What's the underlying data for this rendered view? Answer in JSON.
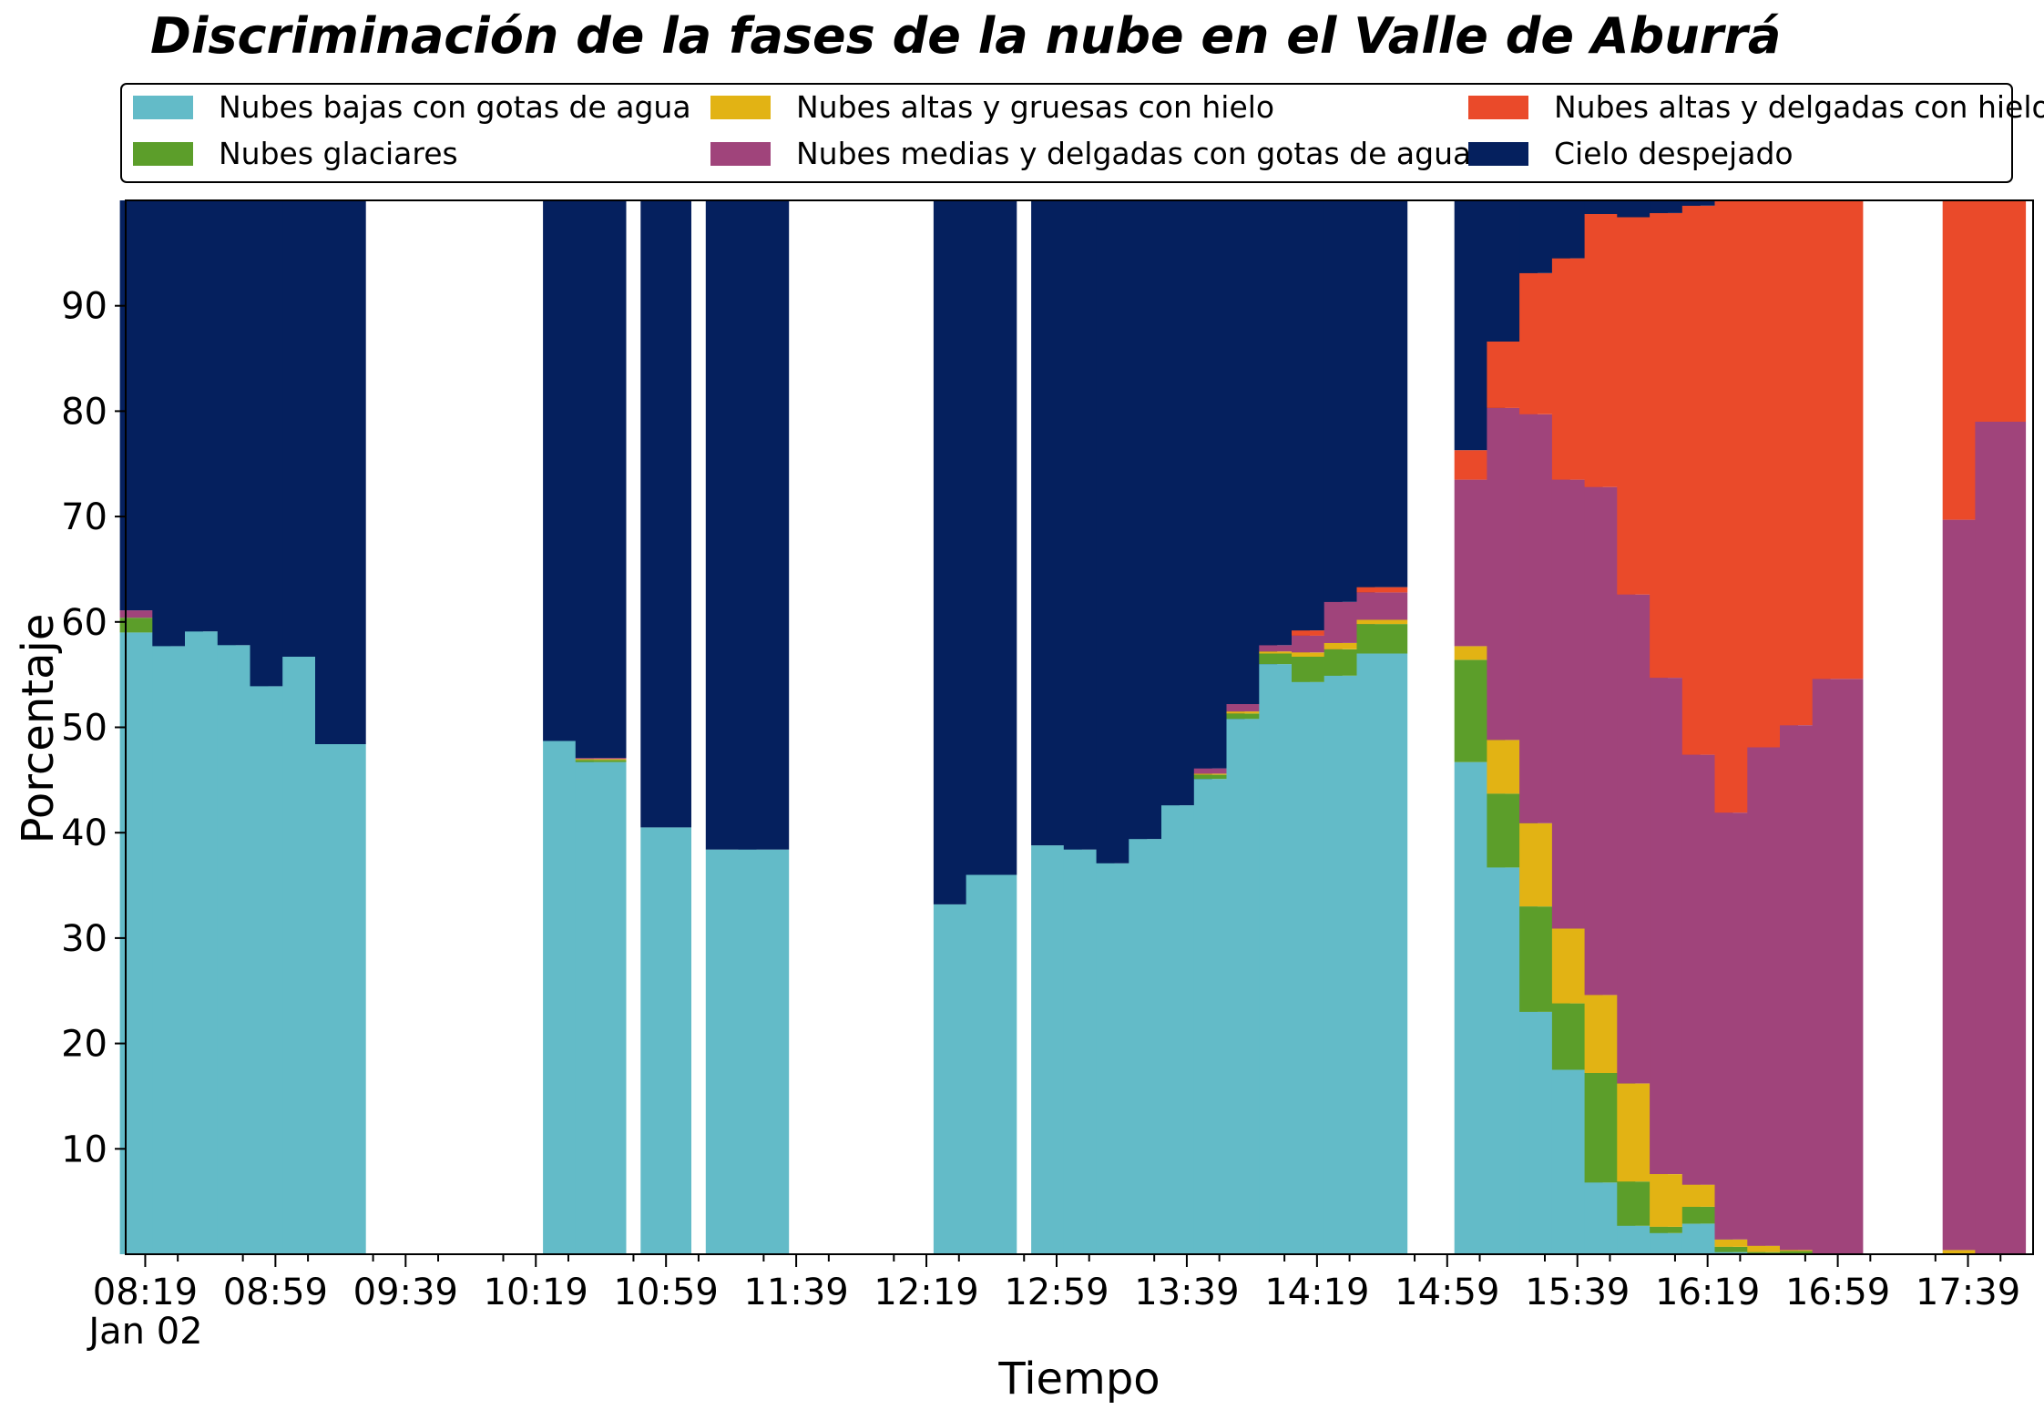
{
  "chart_data": {
    "type": "bar",
    "stacked": true,
    "title": "Discriminación de la fases de la nube en el Valle de Aburrá",
    "xlabel": "Tiempo",
    "ylabel": "Porcentaje",
    "ylim": [
      0,
      100
    ],
    "yticks": [
      10,
      20,
      30,
      40,
      50,
      60,
      70,
      80,
      90
    ],
    "x_tick_labels": [
      "08:19",
      "08:59",
      "09:39",
      "10:19",
      "10:59",
      "11:39",
      "12:19",
      "12:59",
      "13:39",
      "14:19",
      "14:59",
      "15:39",
      "16:19",
      "16:59",
      "17:39"
    ],
    "x_tick_values": [
      "08:19",
      "08:59",
      "09:39",
      "10:19",
      "10:59",
      "11:39",
      "12:19",
      "12:59",
      "13:39",
      "14:19",
      "14:59",
      "15:39",
      "16:19",
      "16:59",
      "17:39"
    ],
    "x_date_label": "Jan 02",
    "xlim": [
      "08:13",
      "17:59"
    ],
    "grid": false,
    "legend_position": "top",
    "colors": {
      "bajas": "#63bbc8",
      "glaciares": "#5c9e2a",
      "altas_gruesas": "#e2b314",
      "medias": "#a0447b",
      "altas_delgadas": "#ea4a2a",
      "despejado": "#05205e"
    },
    "series": [
      {
        "key": "bajas",
        "name": "Nubes bajas con gotas de agua"
      },
      {
        "key": "glaciares",
        "name": "Nubes glaciares"
      },
      {
        "key": "altas_gruesas",
        "name": "Nubes altas y gruesas con hielo"
      },
      {
        "key": "medias",
        "name": "Nubes medias y delgadas con gotas de agua"
      },
      {
        "key": "altas_delgadas",
        "name": "Nubes altas y delgadas con hielo"
      },
      {
        "key": "despejado",
        "name": "Cielo despejado"
      }
    ],
    "bars": [
      {
        "t": "08:19",
        "bajas": 59.0,
        "glaciares": 1.4,
        "altas_gruesas": 0.0,
        "medias": 0.7,
        "altas_delgadas": 0.0,
        "despejado": 38.9
      },
      {
        "t": "08:29",
        "bajas": 57.7,
        "glaciares": 0,
        "altas_gruesas": 0,
        "medias": 0,
        "altas_delgadas": 0,
        "despejado": 42.3
      },
      {
        "t": "08:39",
        "bajas": 59.1,
        "glaciares": 0,
        "altas_gruesas": 0,
        "medias": 0,
        "altas_delgadas": 0,
        "despejado": 40.9
      },
      {
        "t": "08:49",
        "bajas": 57.8,
        "glaciares": 0,
        "altas_gruesas": 0,
        "medias": 0,
        "altas_delgadas": 0,
        "despejado": 42.2
      },
      {
        "t": "08:59",
        "bajas": 53.9,
        "glaciares": 0,
        "altas_gruesas": 0,
        "medias": 0,
        "altas_delgadas": 0,
        "despejado": 46.1
      },
      {
        "t": "09:09",
        "bajas": 56.7,
        "glaciares": 0,
        "altas_gruesas": 0,
        "medias": 0,
        "altas_delgadas": 0,
        "despejado": 43.3
      },
      {
        "t": "09:19",
        "bajas": 48.4,
        "glaciares": 0,
        "altas_gruesas": 0,
        "medias": 0,
        "altas_delgadas": 0,
        "despejado": 51.6
      },
      {
        "t": "10:29",
        "bajas": 48.7,
        "glaciares": 0,
        "altas_gruesas": 0,
        "medias": 0,
        "altas_delgadas": 0,
        "despejado": 51.3
      },
      {
        "t": "10:39",
        "bajas": 46.7,
        "glaciares": 0.2,
        "altas_gruesas": 0.1,
        "medias": 0.1,
        "altas_delgadas": 0,
        "despejado": 52.9
      },
      {
        "t": "10:59",
        "bajas": 40.5,
        "glaciares": 0,
        "altas_gruesas": 0,
        "medias": 0,
        "altas_delgadas": 0,
        "despejado": 59.5
      },
      {
        "t": "11:19",
        "bajas": 38.4,
        "glaciares": 0,
        "altas_gruesas": 0,
        "medias": 0,
        "altas_delgadas": 0,
        "despejado": 61.6
      },
      {
        "t": "11:29",
        "bajas": 38.4,
        "glaciares": 0,
        "altas_gruesas": 0,
        "medias": 0,
        "altas_delgadas": 0,
        "despejado": 61.6
      },
      {
        "t": "12:29",
        "bajas": 33.2,
        "glaciares": 0,
        "altas_gruesas": 0,
        "medias": 0,
        "altas_delgadas": 0,
        "despejado": 66.8
      },
      {
        "t": "12:39",
        "bajas": 36.0,
        "glaciares": 0,
        "altas_gruesas": 0,
        "medias": 0,
        "altas_delgadas": 0,
        "despejado": 64.0
      },
      {
        "t": "12:59",
        "bajas": 38.8,
        "glaciares": 0,
        "altas_gruesas": 0,
        "medias": 0,
        "altas_delgadas": 0,
        "despejado": 61.2
      },
      {
        "t": "13:09",
        "bajas": 38.4,
        "glaciares": 0,
        "altas_gruesas": 0,
        "medias": 0,
        "altas_delgadas": 0,
        "despejado": 61.6
      },
      {
        "t": "13:19",
        "bajas": 37.1,
        "glaciares": 0,
        "altas_gruesas": 0,
        "medias": 0,
        "altas_delgadas": 0,
        "despejado": 62.9
      },
      {
        "t": "13:29",
        "bajas": 39.4,
        "glaciares": 0,
        "altas_gruesas": 0,
        "medias": 0,
        "altas_delgadas": 0,
        "despejado": 60.6
      },
      {
        "t": "13:39",
        "bajas": 42.6,
        "glaciares": 0,
        "altas_gruesas": 0,
        "medias": 0,
        "altas_delgadas": 0,
        "despejado": 57.4
      },
      {
        "t": "13:49",
        "bajas": 45.1,
        "glaciares": 0.4,
        "altas_gruesas": 0.1,
        "medias": 0.5,
        "altas_delgadas": 0,
        "despejado": 53.9
      },
      {
        "t": "13:59",
        "bajas": 50.8,
        "glaciares": 0.5,
        "altas_gruesas": 0.2,
        "medias": 0.7,
        "altas_delgadas": 0,
        "despejado": 47.8
      },
      {
        "t": "14:09",
        "bajas": 56.0,
        "glaciares": 1.0,
        "altas_gruesas": 0.2,
        "medias": 0.6,
        "altas_delgadas": 0,
        "despejado": 42.2
      },
      {
        "t": "14:19",
        "bajas": 54.3,
        "glaciares": 2.4,
        "altas_gruesas": 0.4,
        "medias": 1.6,
        "altas_delgadas": 0.5,
        "despejado": 40.8
      },
      {
        "t": "14:29",
        "bajas": 54.9,
        "glaciares": 2.5,
        "altas_gruesas": 0.6,
        "medias": 3.9,
        "altas_delgadas": 0,
        "despejado": 38.1
      },
      {
        "t": "14:39",
        "bajas": 57.0,
        "glaciares": 2.8,
        "altas_gruesas": 0.4,
        "medias": 2.6,
        "altas_delgadas": 0.5,
        "despejado": 36.7
      },
      {
        "t": "15:09",
        "bajas": 46.7,
        "glaciares": 9.7,
        "altas_gruesas": 1.3,
        "medias": 15.8,
        "altas_delgadas": 2.8,
        "despejado": 23.7
      },
      {
        "t": "15:19",
        "bajas": 36.7,
        "glaciares": 7.0,
        "altas_gruesas": 5.1,
        "medias": 31.5,
        "altas_delgadas": 6.3,
        "despejado": 13.4
      },
      {
        "t": "15:29",
        "bajas": 23.0,
        "glaciares": 10.0,
        "altas_gruesas": 7.9,
        "medias": 38.8,
        "altas_delgadas": 13.4,
        "despejado": 6.9
      },
      {
        "t": "15:39",
        "bajas": 17.5,
        "glaciares": 6.3,
        "altas_gruesas": 7.1,
        "medias": 42.6,
        "altas_delgadas": 21.0,
        "despejado": 5.5
      },
      {
        "t": "15:49",
        "bajas": 6.8,
        "glaciares": 10.4,
        "altas_gruesas": 7.4,
        "medias": 48.2,
        "altas_delgadas": 25.9,
        "despejado": 1.3
      },
      {
        "t": "15:59",
        "bajas": 2.7,
        "glaciares": 4.2,
        "altas_gruesas": 9.3,
        "medias": 46.4,
        "altas_delgadas": 35.8,
        "despejado": 1.6
      },
      {
        "t": "16:09",
        "bajas": 2.0,
        "glaciares": 0.6,
        "altas_gruesas": 5.0,
        "medias": 47.1,
        "altas_delgadas": 44.1,
        "despejado": 1.2
      },
      {
        "t": "16:19",
        "bajas": 2.9,
        "glaciares": 1.6,
        "altas_gruesas": 2.1,
        "medias": 40.8,
        "altas_delgadas": 52.1,
        "despejado": 0.5
      },
      {
        "t": "16:29",
        "bajas": 0.2,
        "glaciares": 0.5,
        "altas_gruesas": 0.7,
        "medias": 40.5,
        "altas_delgadas": 58.1,
        "despejado": 0
      },
      {
        "t": "16:39",
        "bajas": 0.1,
        "glaciares": 0.1,
        "altas_gruesas": 0.6,
        "medias": 47.3,
        "altas_delgadas": 51.9,
        "despejado": 0
      },
      {
        "t": "16:49",
        "bajas": 0.0,
        "glaciares": 0.3,
        "altas_gruesas": 0.1,
        "medias": 49.8,
        "altas_delgadas": 49.8,
        "despejado": 0
      },
      {
        "t": "16:59",
        "bajas": 0.0,
        "glaciares": 0.0,
        "altas_gruesas": 0.0,
        "medias": 54.6,
        "altas_delgadas": 45.4,
        "despejado": 0
      },
      {
        "t": "17:39",
        "bajas": 0.0,
        "glaciares": 0.0,
        "altas_gruesas": 0.4,
        "medias": 69.3,
        "altas_delgadas": 30.3,
        "despejado": 0
      },
      {
        "t": "17:49",
        "bajas": 0.0,
        "glaciares": 0.0,
        "altas_gruesas": 0.0,
        "medias": 79.0,
        "altas_delgadas": 21.0,
        "despejado": 0
      }
    ]
  }
}
